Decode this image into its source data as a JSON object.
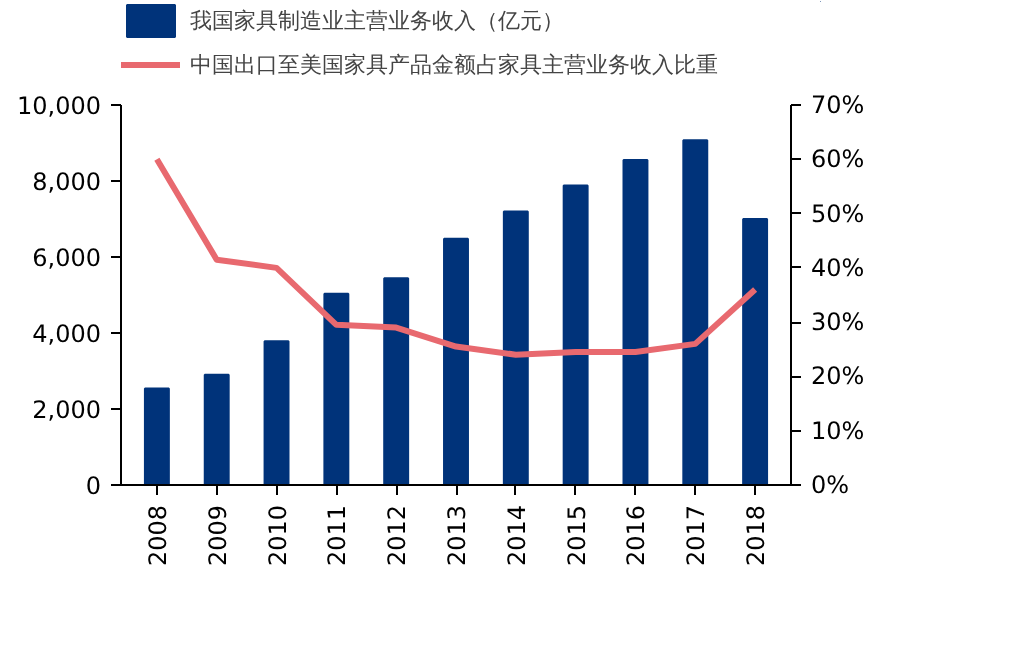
{
  "chart_data": {
    "type": "bar",
    "categories": [
      "2008",
      "2009",
      "2010",
      "2011",
      "2012",
      "2013",
      "2014",
      "2015",
      "2016",
      "2017",
      "2018"
    ],
    "series": [
      {
        "name": "我国家具制造业主营业务收入（亿元）",
        "color": "#00337a",
        "values": [
          2540,
          2900,
          3780,
          5030,
          5440,
          6480,
          7200,
          7880,
          8550,
          9070,
          7000
        ]
      },
      {
        "name": "中国出口至美国家具产品金额占家具主营业务收入比重",
        "color": "#e8696f",
        "type": "line",
        "axis": "y2",
        "values": [
          60,
          41.5,
          40,
          29.5,
          29,
          25.5,
          24,
          24.5,
          24.5,
          26,
          36
        ]
      }
    ],
    "ylim": [
      0,
      10000
    ],
    "yticks": [
      {
        "value": 0,
        "label": "0"
      },
      {
        "value": 2000,
        "label": "2,000"
      },
      {
        "value": 4000,
        "label": "4,000"
      },
      {
        "value": 6000,
        "label": "6,000"
      },
      {
        "value": 8000,
        "label": "8,000"
      },
      {
        "value": 10000,
        "label": "10,000"
      }
    ],
    "y2lim": [
      0,
      70
    ],
    "y2ticks": [
      {
        "value": 0,
        "label": "0%"
      },
      {
        "value": 10,
        "label": "10%"
      },
      {
        "value": 20,
        "label": "20%"
      },
      {
        "value": 30,
        "label": "30%"
      },
      {
        "value": 40,
        "label": "40%"
      },
      {
        "value": 50,
        "label": "50%"
      },
      {
        "value": 60,
        "label": "60%"
      },
      {
        "value": 70,
        "label": "70%"
      }
    ],
    "grid": false,
    "legend": "top"
  }
}
